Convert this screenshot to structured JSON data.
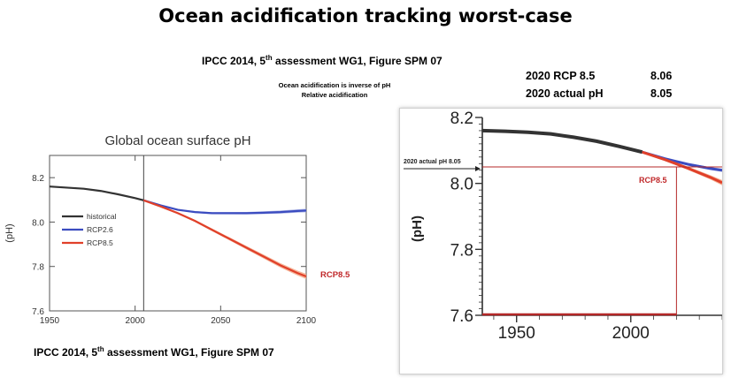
{
  "title": "Ocean acidification tracking worst-case",
  "caption_top": {
    "pre": "IPCC 2014, 5",
    "sup": "th",
    "post": " assessment WG1, Figure SPM 07"
  },
  "caption_bottom": {
    "pre": "IPCC 2014, 5",
    "sup": "th",
    "post": " assessment WG1, Figure SPM 07"
  },
  "notes": [
    "Ocean acidification is inverse of pH",
    "Relative acidification"
  ],
  "stats": [
    {
      "label": "2020 RCP 8.5",
      "value": "8.06"
    },
    {
      "label": "2020 actual pH",
      "value": "8.05"
    }
  ],
  "colors": {
    "historical": "#333333",
    "rcp26": "#3b4cc0",
    "rcp85": "#e0402a",
    "band85": "#f4a582",
    "band26": "#9ea8e0",
    "annotation": "#c0282a",
    "redline": "#b42828"
  },
  "chart_data": [
    {
      "type": "line",
      "title": "Global ocean surface pH",
      "ylabel": "(pH)",
      "xlim": [
        1950,
        2100
      ],
      "ylim": [
        7.6,
        8.3
      ],
      "xticks": [
        1950,
        2000,
        2050,
        2100
      ],
      "yticks": [
        7.6,
        7.8,
        8.0,
        8.2
      ],
      "xtick_labels": [
        "1950",
        "2000",
        "2050",
        "2100"
      ],
      "ytick_labels": [
        "7.6",
        "7.8",
        "8.0",
        "8.2"
      ],
      "divider_x": 2005,
      "legend": [
        "historical",
        "RCP2.6",
        "RCP8.5"
      ],
      "legend_position": "middle-left",
      "annotation": "RCP8.5",
      "series": [
        {
          "name": "historical",
          "x": [
            1950,
            1960,
            1970,
            1980,
            1990,
            2000,
            2005
          ],
          "y": [
            8.16,
            8.155,
            8.15,
            8.14,
            8.125,
            8.108,
            8.098
          ]
        },
        {
          "name": "RCP2.6",
          "x": [
            2005,
            2015,
            2025,
            2035,
            2045,
            2055,
            2065,
            2075,
            2085,
            2095,
            2100
          ],
          "y": [
            8.098,
            8.075,
            8.055,
            8.045,
            8.04,
            8.04,
            8.04,
            8.042,
            8.045,
            8.05,
            8.052
          ]
        },
        {
          "name": "RCP8.5",
          "x": [
            2005,
            2015,
            2025,
            2035,
            2045,
            2055,
            2065,
            2075,
            2085,
            2095,
            2100
          ],
          "y": [
            8.098,
            8.07,
            8.04,
            8.005,
            7.965,
            7.925,
            7.885,
            7.845,
            7.805,
            7.77,
            7.755
          ]
        }
      ]
    },
    {
      "type": "line",
      "ylabel": "(pH)",
      "xlim": [
        1935,
        2040
      ],
      "ylim": [
        7.6,
        8.2
      ],
      "xticks": [
        1950,
        2000
      ],
      "yticks": [
        7.6,
        7.8,
        8.0,
        8.2
      ],
      "xtick_labels": [
        "1950",
        "2000"
      ],
      "ytick_labels": [
        "7.6",
        "7.8",
        "8.0",
        "8.2"
      ],
      "marker": {
        "x": 2020,
        "y": 8.05,
        "label": "2020 actual pH 8.05"
      },
      "annotation": "RCP8.5",
      "series": [
        {
          "name": "historical",
          "x": [
            1935,
            1945,
            1955,
            1965,
            1975,
            1985,
            1995,
            2005
          ],
          "y": [
            8.16,
            8.158,
            8.155,
            8.15,
            8.14,
            8.128,
            8.112,
            8.095
          ]
        },
        {
          "name": "RCP2.6",
          "x": [
            2005,
            2015,
            2025,
            2035,
            2040
          ],
          "y": [
            8.095,
            8.075,
            8.058,
            8.045,
            8.04
          ]
        },
        {
          "name": "RCP8.5",
          "x": [
            2005,
            2015,
            2025,
            2035,
            2040
          ],
          "y": [
            8.095,
            8.072,
            8.046,
            8.018,
            8.002
          ]
        }
      ]
    }
  ]
}
